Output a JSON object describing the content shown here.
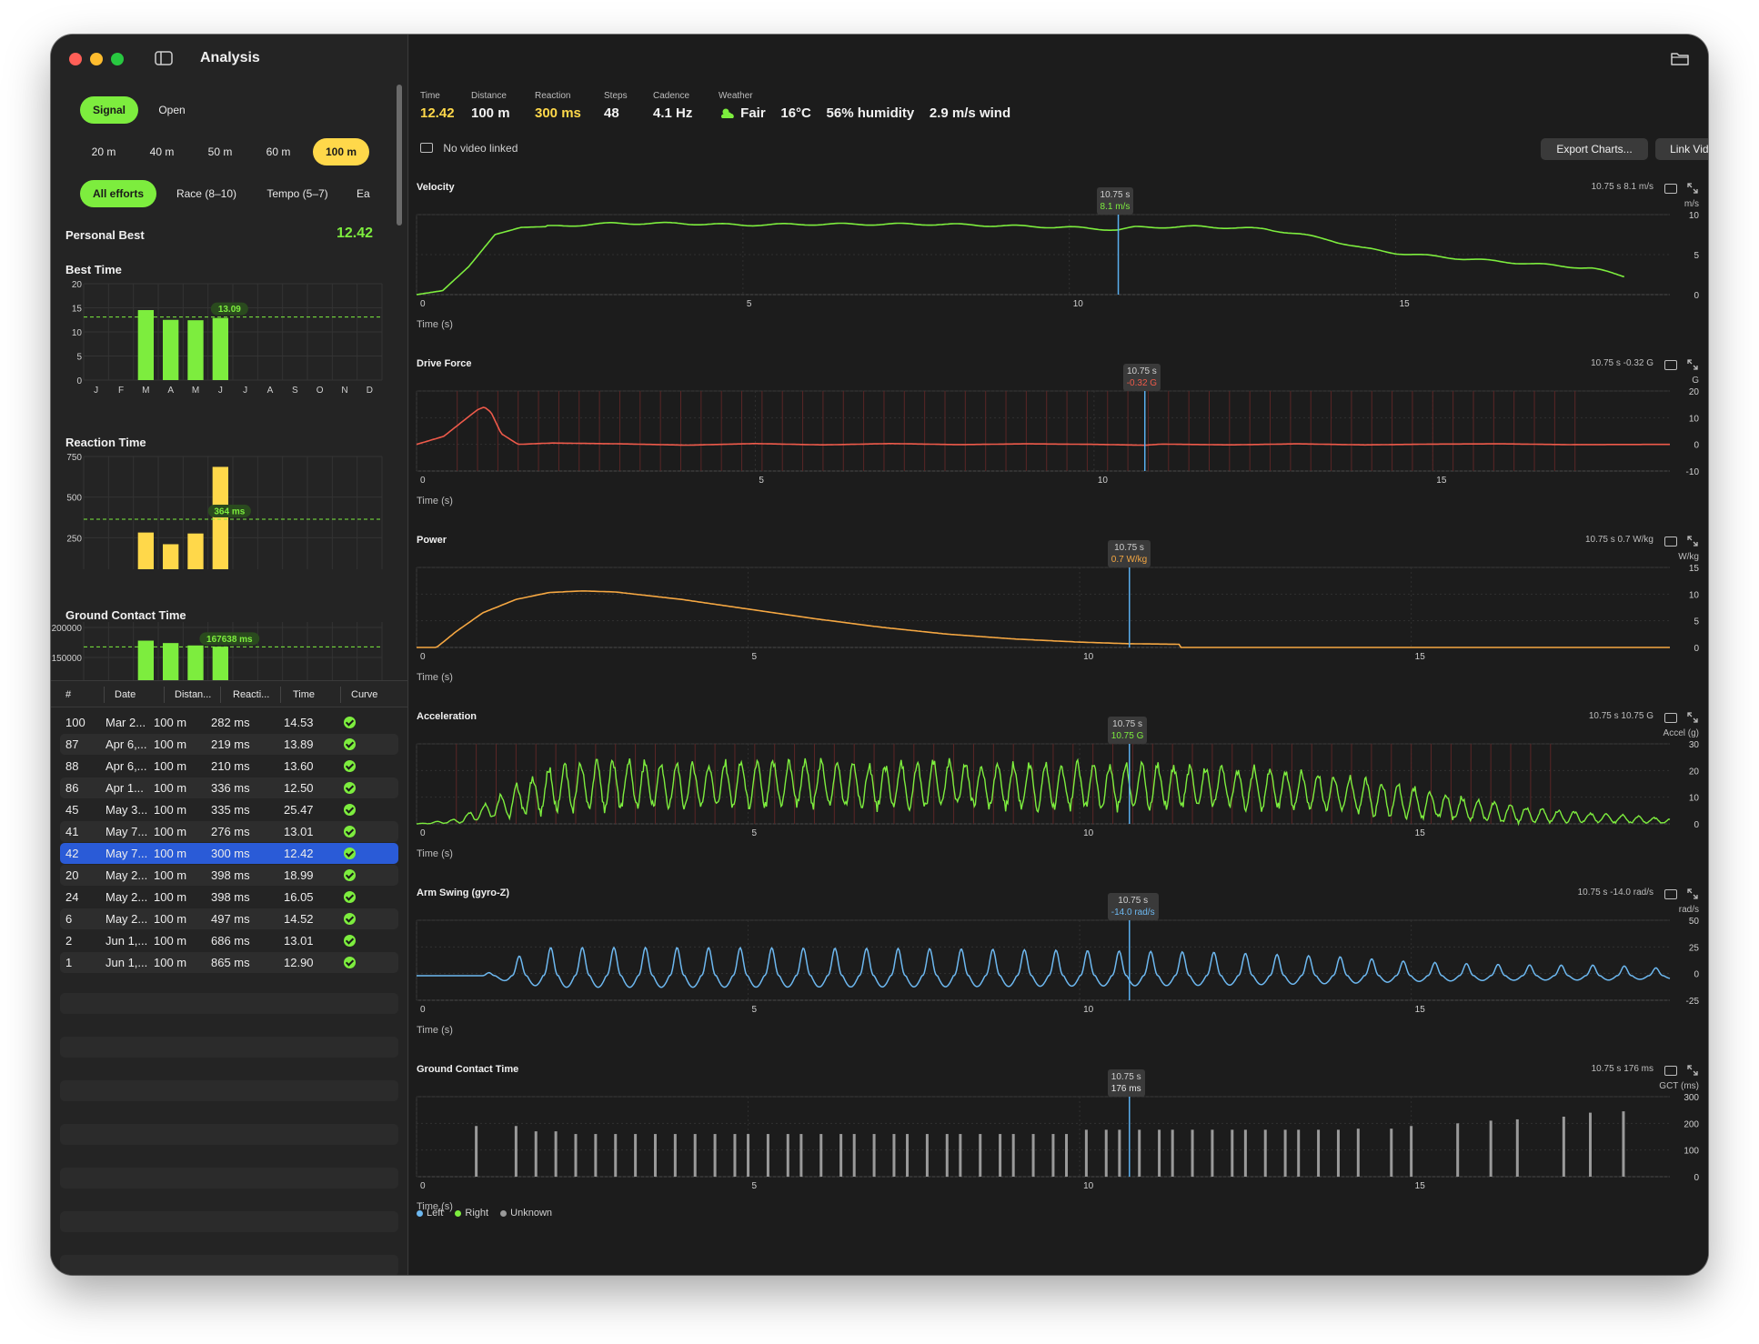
{
  "window": {
    "title": "Analysis"
  },
  "sidebar": {
    "mode_tabs": [
      {
        "label": "Signal",
        "selected": true
      },
      {
        "label": "Open",
        "selected": false
      }
    ],
    "distance_tabs": [
      {
        "label": "20 m",
        "selected": false
      },
      {
        "label": "40 m",
        "selected": false
      },
      {
        "label": "50 m",
        "selected": false
      },
      {
        "label": "60 m",
        "selected": false
      },
      {
        "label": "100 m",
        "selected": true
      }
    ],
    "effort_tabs": [
      {
        "label": "All efforts",
        "selected": true
      },
      {
        "label": "Race (8–10)",
        "selected": false
      },
      {
        "label": "Tempo (5–7)",
        "selected": false
      },
      {
        "label": "Ea",
        "selected": false
      }
    ],
    "personal_best": {
      "label": "Personal Best",
      "value": "12.42"
    },
    "month_labels": [
      "J",
      "F",
      "M",
      "A",
      "M",
      "J",
      "J",
      "A",
      "S",
      "O",
      "N",
      "D"
    ],
    "mini_charts": [
      {
        "title": "Best Time",
        "color": "#7ded3e",
        "yticks": [
          "20",
          "15",
          "10",
          "5",
          "0"
        ],
        "ymax": 20,
        "values": [
          null,
          null,
          14.53,
          12.5,
          12.42,
          12.9,
          null,
          null,
          null,
          null,
          null,
          null
        ],
        "ref_value": 13.09,
        "ref_label": "13.09"
      },
      {
        "title": "Reaction Time",
        "color": "#ffd84a",
        "yticks": [
          "750",
          "500",
          "250",
          "0"
        ],
        "ymax": 750,
        "values": [
          null,
          null,
          282,
          210,
          276,
          686,
          null,
          null,
          null,
          null,
          null,
          null
        ],
        "ref_value": 364,
        "ref_label": "364 ms"
      },
      {
        "title": "Ground Contact Time",
        "color": "#7ded3e",
        "yticks": [
          "200000",
          "150000"
        ],
        "ymax": 200000,
        "values": [
          null,
          null,
          178000,
          174000,
          170000,
          168000,
          null,
          null,
          null,
          null,
          null,
          null
        ],
        "ref_value": 167638,
        "ref_label": "167638 ms"
      }
    ],
    "table": {
      "columns": [
        "#",
        "Date",
        "Distan...",
        "Reacti...",
        "Time",
        "Curve"
      ],
      "rows": [
        [
          "100",
          "Mar 2...",
          "100 m",
          "282 ms",
          "14.53"
        ],
        [
          "87",
          "Apr 6,...",
          "100 m",
          "219 ms",
          "13.89"
        ],
        [
          "88",
          "Apr 6,...",
          "100 m",
          "210 ms",
          "13.60"
        ],
        [
          "86",
          "Apr 1...",
          "100 m",
          "336 ms",
          "12.50"
        ],
        [
          "45",
          "May 3...",
          "100 m",
          "335 ms",
          "25.47"
        ],
        [
          "41",
          "May 7...",
          "100 m",
          "276 ms",
          "13.01"
        ],
        [
          "42",
          "May 7...",
          "100 m",
          "300 ms",
          "12.42"
        ],
        [
          "20",
          "May 2...",
          "100 m",
          "398 ms",
          "18.99"
        ],
        [
          "24",
          "May 2...",
          "100 m",
          "398 ms",
          "16.05"
        ],
        [
          "6",
          "May 2...",
          "100 m",
          "497 ms",
          "14.52"
        ],
        [
          "2",
          "Jun 1,...",
          "100 m",
          "686 ms",
          "13.01"
        ],
        [
          "1",
          "Jun 1,...",
          "100 m",
          "865 ms",
          "12.90"
        ]
      ],
      "selected_index": 6
    }
  },
  "summary": {
    "time": {
      "label": "Time",
      "value": "12.42"
    },
    "distance": {
      "label": "Distance",
      "value": "100 m"
    },
    "reaction": {
      "label": "Reaction",
      "value": "300 ms"
    },
    "steps": {
      "label": "Steps",
      "value": "48"
    },
    "cadence": {
      "label": "Cadence",
      "value": "4.1 Hz"
    },
    "weather": {
      "label": "Weather",
      "condition": "Fair",
      "temperature": "16°C",
      "humidity": "56% humidity",
      "wind": "2.9 m/s wind"
    }
  },
  "video": {
    "status": "No video linked",
    "export_label": "Export Charts...",
    "link_label": "Link Video..."
  },
  "cursor": {
    "time": 10.75,
    "time_label": "10.75 s"
  },
  "chart_data": [
    {
      "type": "line",
      "name": "velocity",
      "title": "Velocity",
      "unit": "m/s",
      "color": "#7ded3e",
      "xlabel": "Time (s)",
      "xlim": [
        0,
        19.2
      ],
      "ylim": [
        0,
        10
      ],
      "xticks": [
        "0",
        "5",
        "10",
        "15"
      ],
      "yticks": [
        "10",
        "5",
        "0"
      ],
      "cursor_value": "8.1 m/s",
      "readout": "10.75 s  8.1 m/s",
      "x": [
        0,
        0.4,
        0.8,
        1.2,
        1.6,
        2,
        3,
        4,
        5,
        6,
        7,
        8,
        9,
        10,
        10.75,
        11,
        12,
        13,
        13.5,
        14,
        14.5,
        15,
        16,
        17,
        18,
        18.5
      ],
      "y": [
        0,
        0.5,
        3.5,
        7.5,
        8.4,
        8.5,
        8.9,
        8.9,
        8.7,
        8.8,
        8.8,
        8.8,
        8.6,
        8.4,
        8.1,
        8.4,
        8.5,
        8.2,
        7.6,
        6.8,
        5.8,
        5.2,
        4.5,
        3.9,
        3.3,
        2.3
      ]
    },
    {
      "type": "line",
      "name": "drive_force",
      "title": "Drive Force",
      "unit": "G",
      "color": "#ee5a4a",
      "xlabel": "Time (s)",
      "xlim": [
        0,
        18.5
      ],
      "ylim": [
        -10,
        20
      ],
      "xticks": [
        "0",
        "5",
        "10",
        "15"
      ],
      "yticks": [
        "20",
        "10",
        "0",
        "-10"
      ],
      "cursor_value": "-0.32 G",
      "readout": "10.75 s  -0.32 G",
      "x": [
        0,
        0.4,
        0.7,
        0.9,
        1.0,
        1.1,
        1.25,
        1.5,
        2,
        3,
        4,
        5,
        6,
        7,
        8,
        9,
        10,
        10.75,
        11,
        12,
        13,
        14,
        15,
        16,
        17,
        18.5
      ],
      "y": [
        0,
        3,
        9,
        13,
        14,
        12,
        4,
        0,
        0.5,
        0.2,
        -0.3,
        0.3,
        -0.2,
        0.3,
        -0.1,
        0.2,
        0,
        -0.32,
        0.1,
        -0.2,
        0.2,
        -0.2,
        0.1,
        0.2,
        -0.1,
        0
      ]
    },
    {
      "type": "line",
      "name": "power",
      "title": "Power",
      "unit": "W/kg",
      "color": "#f5a742",
      "xlabel": "Time (s)",
      "xlim": [
        0,
        18.9
      ],
      "ylim": [
        0,
        15
      ],
      "xticks": [
        "0",
        "5",
        "10",
        "15"
      ],
      "yticks": [
        "15",
        "10",
        "5",
        "0"
      ],
      "cursor_value": "0.7 W/kg",
      "readout": "10.75 s  0.7 W/kg",
      "x": [
        0,
        0.3,
        0.6,
        1,
        1.5,
        2,
        2.5,
        3,
        4,
        5,
        6,
        7,
        8,
        9,
        10,
        10.75,
        11.5,
        11.51,
        18.9
      ],
      "y": [
        0,
        0,
        3,
        6.5,
        9,
        10.3,
        10.6,
        10.4,
        9,
        7.2,
        5.4,
        3.8,
        2.5,
        1.6,
        1,
        0.7,
        0.6,
        0,
        0
      ]
    },
    {
      "type": "line",
      "name": "acceleration",
      "title": "Acceleration",
      "unit": "Accel (g)",
      "color": "#7ded3e",
      "xlabel": "Time (s)",
      "xlim": [
        0,
        18.9
      ],
      "ylim": [
        0,
        30
      ],
      "xticks": [
        "0",
        "5",
        "10",
        "15"
      ],
      "yticks": [
        "30",
        "20",
        "10",
        "0"
      ],
      "cursor_value": "10.75 G",
      "readout": "10.75 s  10.75 G",
      "x": [
        0,
        0.6,
        1.2,
        2,
        3,
        4,
        5,
        6,
        7,
        8,
        9,
        10,
        11,
        12,
        13,
        14,
        15,
        16,
        17,
        18,
        18.9
      ],
      "y_mean": [
        0,
        1,
        6,
        13,
        15,
        14,
        15,
        15,
        14,
        15,
        14,
        14,
        14,
        14,
        13,
        11,
        8,
        5,
        3,
        2,
        1
      ],
      "y_amp": [
        0,
        1,
        5,
        10,
        11,
        10,
        10,
        10,
        10,
        10,
        10,
        10,
        10,
        9,
        9,
        8,
        7,
        5,
        3,
        2,
        1
      ]
    },
    {
      "type": "line",
      "name": "arm_swing",
      "title": "Arm Swing (gyro-Z)",
      "unit": "rad/s",
      "color": "#6db8f0",
      "xlabel": "Time (s)",
      "xlim": [
        0,
        18.9
      ],
      "ylim": [
        -25,
        50
      ],
      "xticks": [
        "0",
        "5",
        "10",
        "15"
      ],
      "yticks": [
        "50",
        "25",
        "0",
        "-25"
      ],
      "cursor_value": "-14.0 rad/s",
      "readout": "10.75 s  -14.0 rad/s",
      "x": [
        0,
        1,
        1.5,
        2,
        4,
        8,
        12,
        14,
        15,
        16,
        17,
        18,
        18.9
      ],
      "y_amp": [
        0,
        0,
        16,
        24,
        24,
        23,
        20,
        16,
        12,
        10,
        9,
        9,
        6
      ]
    },
    {
      "type": "bar",
      "name": "ground_contact_time",
      "title": "Ground Contact Time",
      "unit": "GCT (ms)",
      "color": "#9a9a9a",
      "xlabel": "Time (s)",
      "xlim": [
        0,
        18.9
      ],
      "ylim": [
        0,
        300
      ],
      "xticks": [
        "0",
        "5",
        "10",
        "15"
      ],
      "yticks": [
        "300",
        "200",
        "100",
        "0"
      ],
      "cursor_value": "176 ms",
      "readout": "10.75 s  176 ms",
      "x": [
        0.9,
        1.5,
        1.8,
        2.1,
        2.4,
        2.7,
        3.0,
        3.3,
        3.6,
        3.9,
        4.2,
        4.5,
        4.8,
        5.0,
        5.3,
        5.6,
        5.8,
        6.1,
        6.4,
        6.6,
        6.9,
        7.2,
        7.4,
        7.7,
        8.0,
        8.2,
        8.5,
        8.8,
        9.0,
        9.3,
        9.6,
        9.8,
        10.1,
        10.4,
        10.6,
        10.9,
        11.2,
        11.4,
        11.7,
        12.0,
        12.3,
        12.5,
        12.8,
        13.1,
        13.3,
        13.6,
        13.9,
        14.2,
        14.7,
        15.0,
        15.7,
        16.2,
        16.6,
        17.3,
        17.7,
        18.2
      ],
      "y": [
        190,
        190,
        170,
        170,
        160,
        160,
        160,
        160,
        160,
        160,
        160,
        160,
        160,
        160,
        160,
        160,
        160,
        160,
        160,
        160,
        160,
        160,
        160,
        160,
        160,
        160,
        160,
        160,
        160,
        160,
        160,
        160,
        176,
        176,
        176,
        176,
        176,
        176,
        176,
        176,
        176,
        176,
        176,
        176,
        176,
        176,
        176,
        180,
        180,
        190,
        200,
        210,
        215,
        225,
        240,
        245
      ]
    }
  ],
  "legend": [
    {
      "label": "Left",
      "color": "#6db8f0"
    },
    {
      "label": "Right",
      "color": "#7ded3e"
    },
    {
      "label": "Unknown",
      "color": "#9a9a9a"
    }
  ]
}
